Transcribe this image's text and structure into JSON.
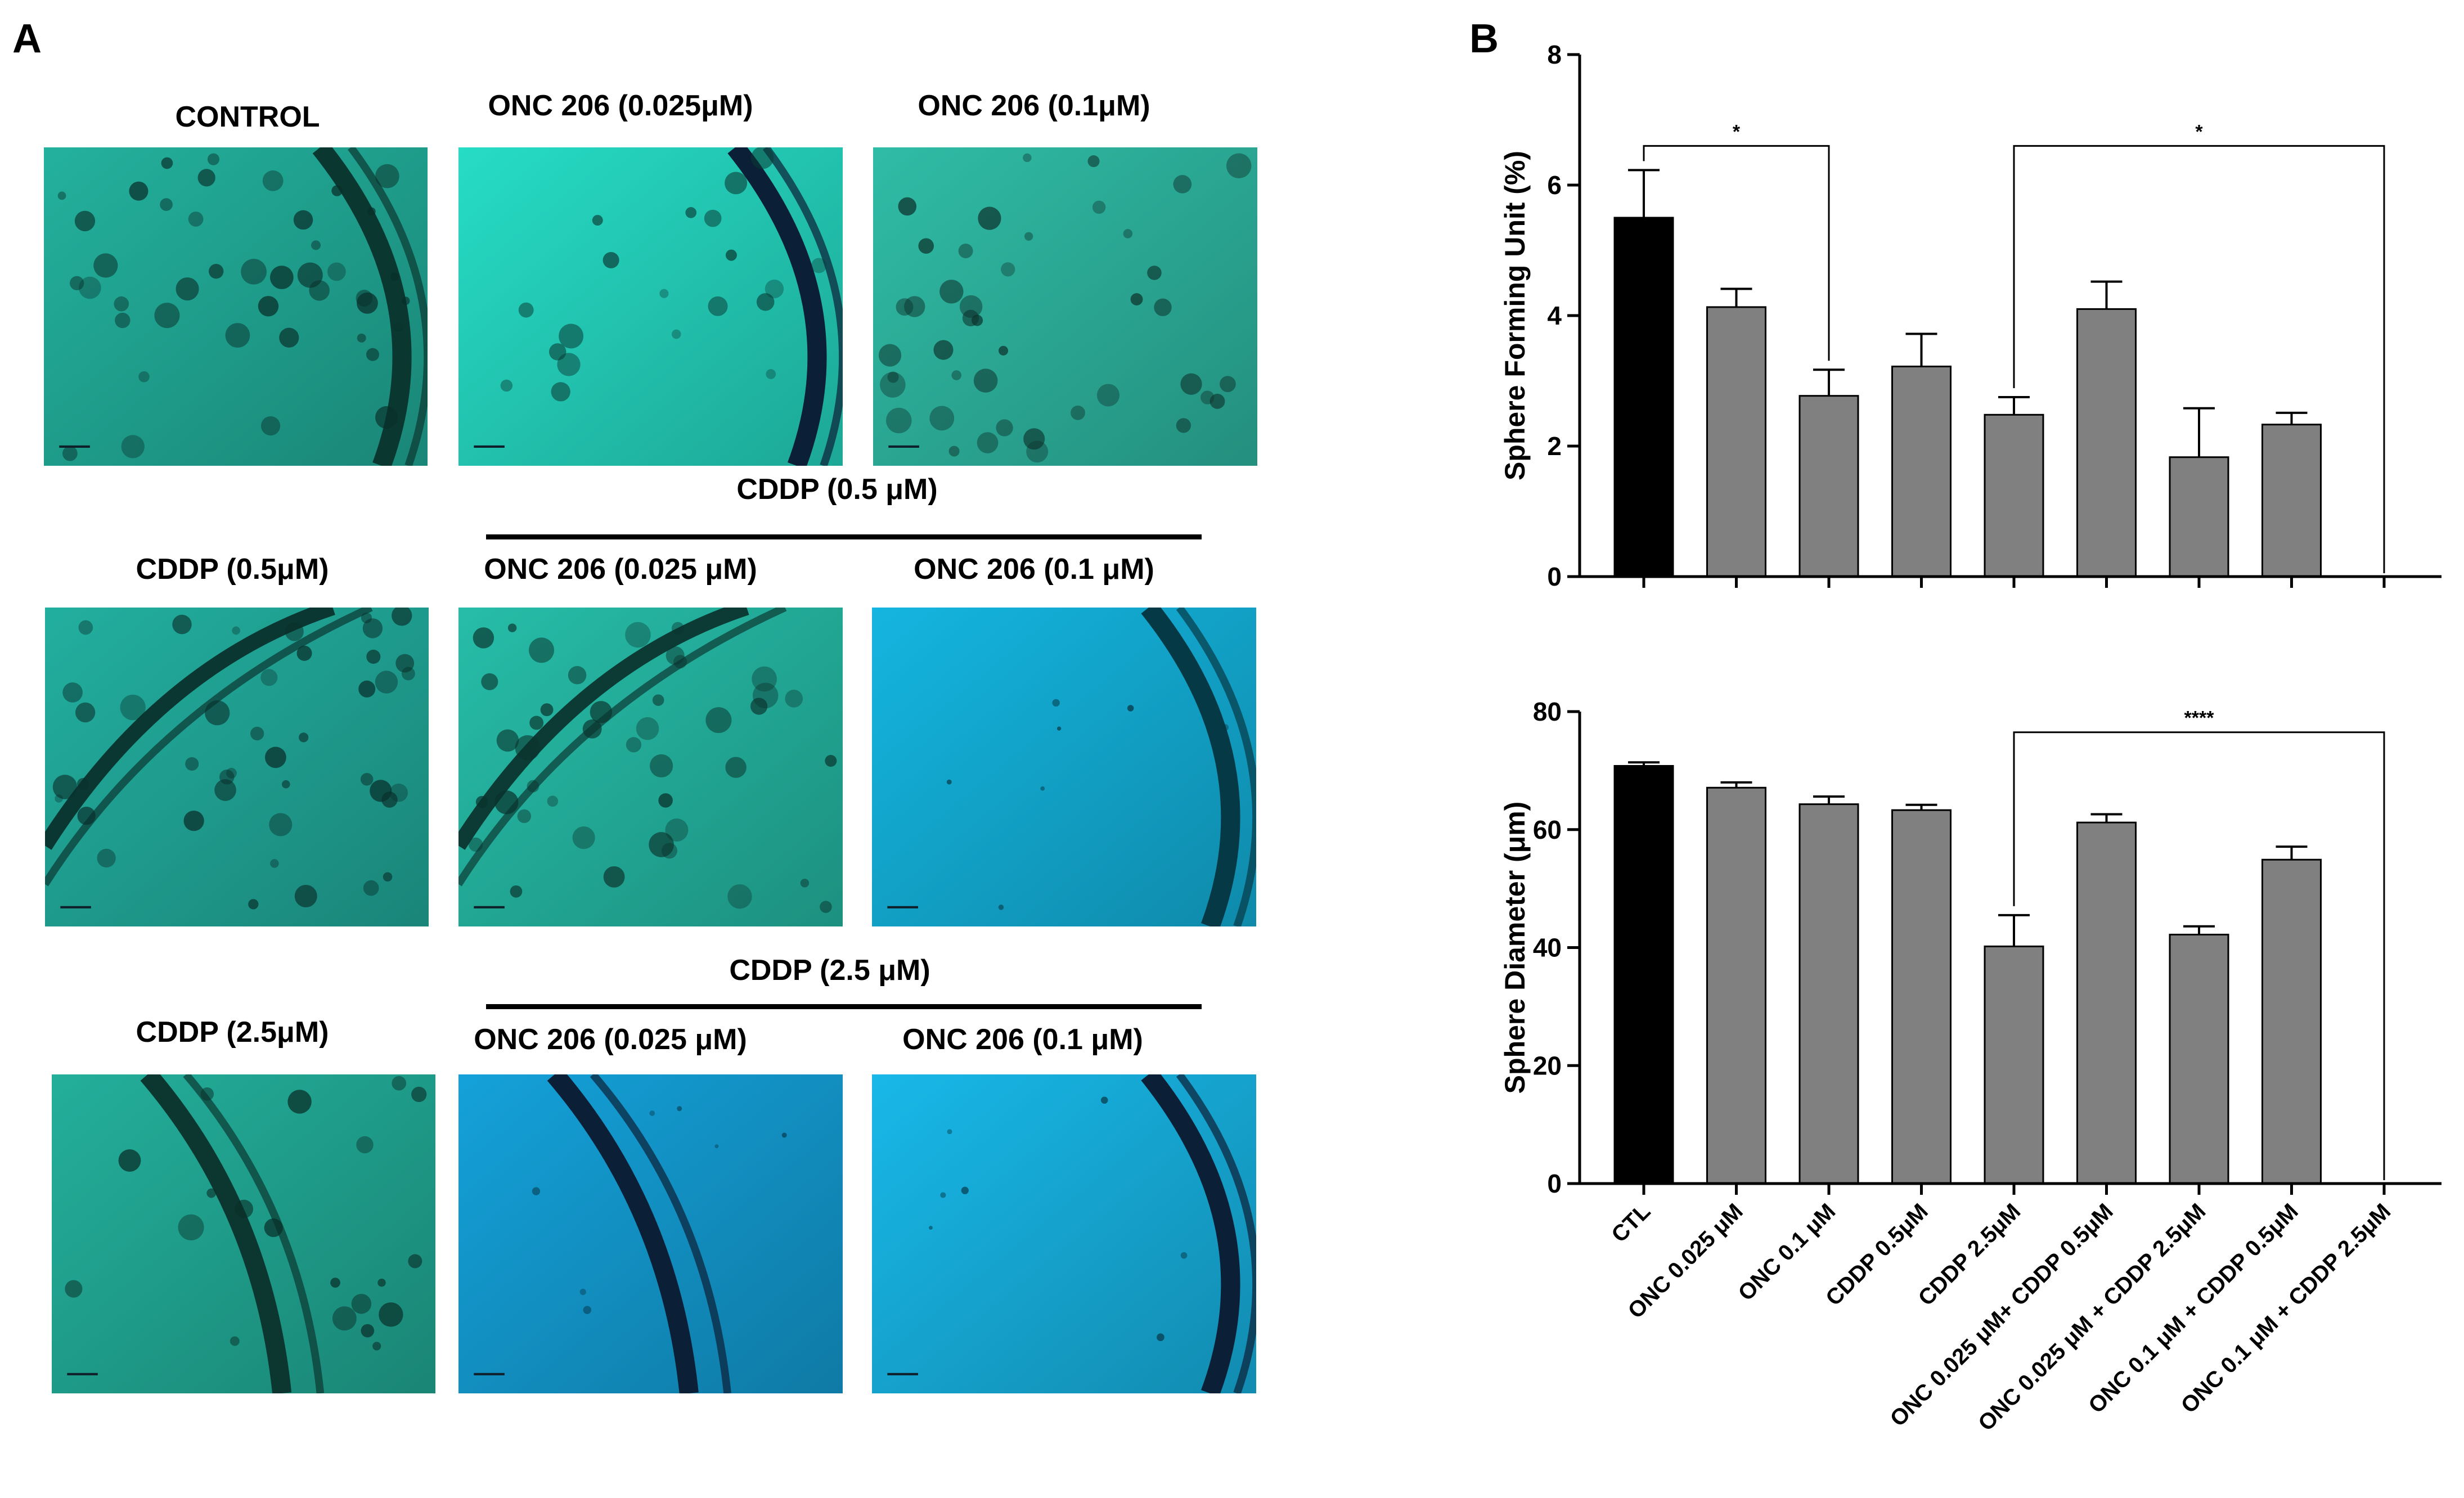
{
  "panel_a": {
    "label": "A",
    "row_headers": [
      {
        "text": "CDDP (0.5 μM)"
      },
      {
        "text": "CDDP (2.5 μM)"
      }
    ],
    "images": [
      {
        "caption": "CONTROL",
        "tint": "#1f9e8c",
        "density": "high",
        "ring": "right"
      },
      {
        "caption": "ONC 206 (0.025μM)",
        "tint": "#22c4b0",
        "density": "medium",
        "ring": "right-dark"
      },
      {
        "caption": "ONC 206 (0.1μM)",
        "tint": "#2aa894",
        "density": "high",
        "ring": "none"
      },
      {
        "caption": "CDDP (0.5μM)",
        "tint": "#1e9c8e",
        "density": "high",
        "ring": "left"
      },
      {
        "caption": "ONC 206 (0.025 μM)",
        "tint": "#22a996",
        "density": "high",
        "ring": "left"
      },
      {
        "caption": "ONC 206 (0.1 μM)",
        "tint": "#12a2c8",
        "density": "low",
        "ring": "right"
      },
      {
        "caption": "CDDP (2.5μM)",
        "tint": "#1f9c8a",
        "density": "medium",
        "ring": "center"
      },
      {
        "caption": "ONC 206 (0.025 μM)",
        "tint": "#1290c2",
        "density": "low",
        "ring": "center-dark"
      },
      {
        "caption": "ONC 206 (0.1 μM)",
        "tint": "#15a4cf",
        "density": "low",
        "ring": "right-dark"
      }
    ]
  },
  "panel_b": {
    "label": "B"
  },
  "chart_data": [
    {
      "type": "bar",
      "ylabel": "Sphere Forming Unit (%)",
      "ylim": [
        0,
        8
      ],
      "yticks": [
        "0",
        "2",
        "4",
        "6",
        "8"
      ],
      "categories": [
        "CTL",
        "ONC 0.025 μM",
        "ONC 0.1 μM",
        "CDDP 0.5μM",
        "CDDP 2.5μM",
        "ONC 0.025 μM+ CDDP 0.5μM",
        "ONC 0.025 μM + CDDP 2.5μM",
        "ONC 0.1 μM + CDDP 0.5μM",
        "ONC 0.1 μM + CDDP 2.5μM"
      ],
      "values": [
        5.5,
        4.13,
        2.77,
        3.22,
        2.48,
        4.1,
        1.83,
        2.33,
        0
      ],
      "errors": [
        0.73,
        0.28,
        0.4,
        0.5,
        0.27,
        0.42,
        0.75,
        0.18,
        0
      ],
      "colors": [
        "#000000",
        "#808080",
        "#808080",
        "#808080",
        "#808080",
        "#808080",
        "#808080",
        "#808080",
        "#808080"
      ],
      "significance": [
        {
          "from": 0,
          "to": 2,
          "level": 6.6,
          "label": "*"
        },
        {
          "from": 4,
          "to": 8,
          "level": 6.6,
          "label": "*"
        }
      ]
    },
    {
      "type": "bar",
      "ylabel": "Sphere Diameter (μm)",
      "ylim": [
        0,
        80
      ],
      "yticks": [
        "0",
        "20",
        "40",
        "60",
        "80"
      ],
      "categories": [
        "CTL",
        "ONC 0.025 μM",
        "ONC 0.1 μM",
        "CDDP 0.5μM",
        "CDDP 2.5μM",
        "ONC 0.025 μM+ CDDP 0.5μM",
        "ONC 0.025 μM + CDDP 2.5μM",
        "ONC 0.1 μM + CDDP 0.5μM",
        "ONC 0.1 μM + CDDP 2.5μM"
      ],
      "values": [
        70.8,
        67.1,
        64.3,
        63.3,
        40.2,
        61.2,
        42.2,
        54.9,
        0
      ],
      "errors": [
        0.6,
        0.9,
        1.3,
        0.9,
        5.3,
        1.4,
        1.4,
        2.2,
        0
      ],
      "colors": [
        "#000000",
        "#808080",
        "#808080",
        "#808080",
        "#808080",
        "#808080",
        "#808080",
        "#808080",
        "#808080"
      ],
      "significance": [
        {
          "from": 4,
          "to": 8,
          "level": 76.5,
          "label": "****"
        }
      ]
    }
  ]
}
